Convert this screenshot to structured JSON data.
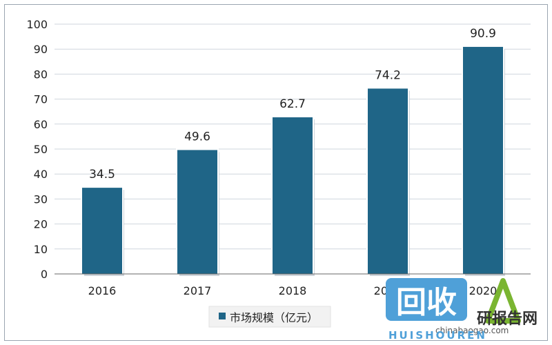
{
  "chart_data": {
    "type": "bar",
    "categories": [
      "2016",
      "2017",
      "2018",
      "2019",
      "2020"
    ],
    "values": [
      34.5,
      49.6,
      62.7,
      74.2,
      90.9
    ],
    "data_labels": [
      "34.5",
      "49.6",
      "62.7",
      "74.2",
      "90.9"
    ],
    "series": [
      {
        "name": "市场规模（亿元）",
        "values": [
          34.5,
          49.6,
          62.7,
          74.2,
          90.9
        ]
      }
    ],
    "title": "",
    "xlabel": "",
    "ylabel": "",
    "ylim": [
      0,
      100
    ],
    "yticks": [
      "0",
      "10",
      "20",
      "30",
      "40",
      "50",
      "60",
      "70",
      "80",
      "90",
      "100"
    ],
    "grid": true,
    "legend_position": "bottom",
    "colors": {
      "bar": "#1f6587",
      "grid": "#cfd6dd",
      "axis": "#666666"
    }
  },
  "watermark": {
    "logo_text": "回收",
    "brand_text": "研报告网",
    "url_text": "chinabaogao.com",
    "sub_text": "HUISHOUREN",
    "colors": {
      "logo_bg": "#4fa0d8",
      "logo_fg": "#ffffff",
      "green": "#7ab531"
    }
  }
}
